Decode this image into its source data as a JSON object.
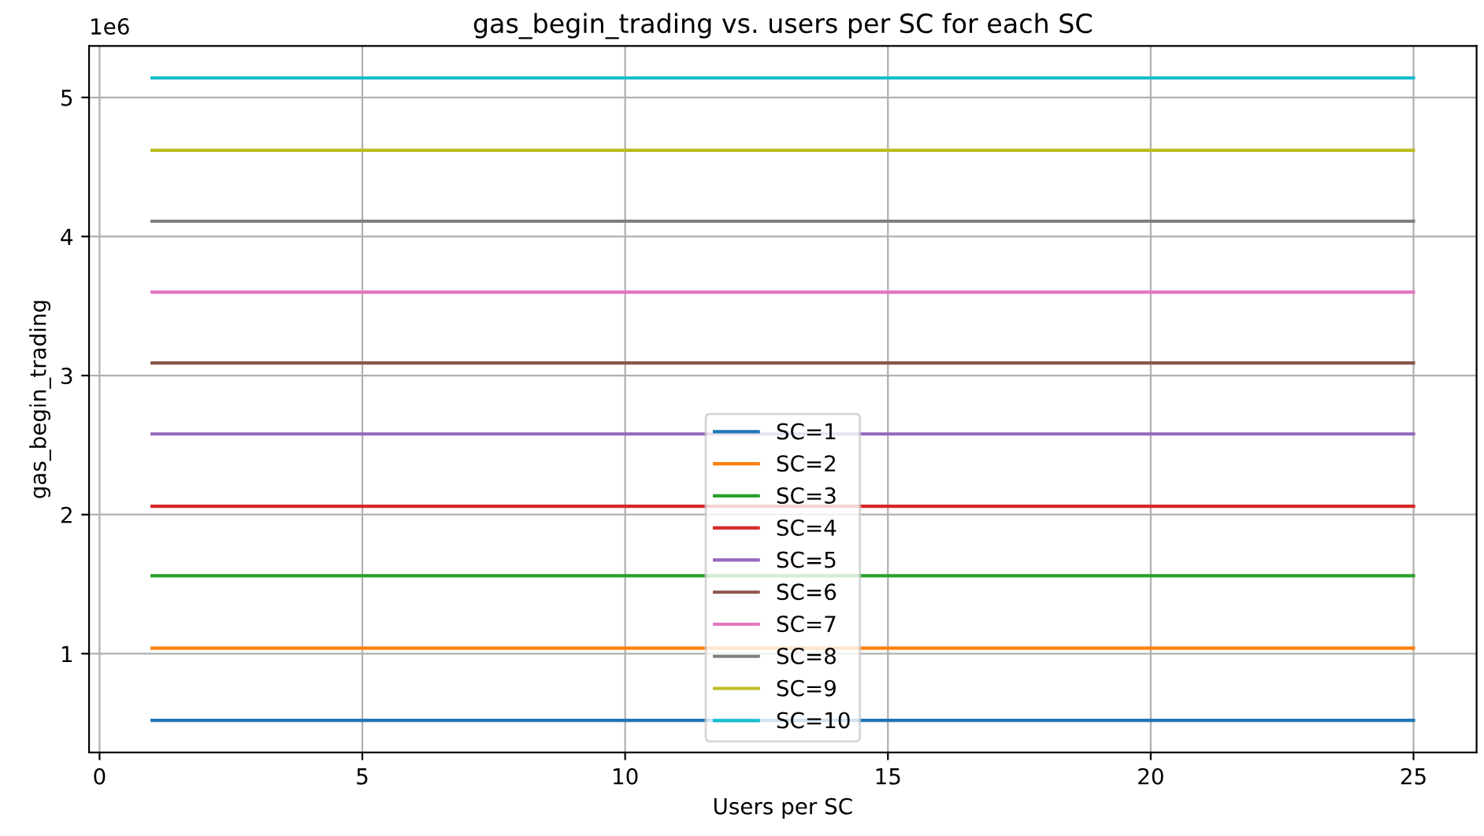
{
  "chart_data": {
    "type": "line",
    "title": "gas_begin_trading vs. users per SC for each SC",
    "xlabel": "Users per SC",
    "ylabel": "gas_begin_trading",
    "x": [
      1,
      25
    ],
    "series": [
      {
        "name": "SC=1",
        "color": "#1f77b4",
        "values": [
          0.52,
          0.52
        ]
      },
      {
        "name": "SC=2",
        "color": "#ff7f0e",
        "values": [
          1.04,
          1.04
        ]
      },
      {
        "name": "SC=3",
        "color": "#2ca02c",
        "values": [
          1.56,
          1.56
        ]
      },
      {
        "name": "SC=4",
        "color": "#d62728",
        "values": [
          2.06,
          2.06
        ]
      },
      {
        "name": "SC=5",
        "color": "#9467bd",
        "values": [
          2.58,
          2.58
        ]
      },
      {
        "name": "SC=6",
        "color": "#8c564b",
        "values": [
          3.09,
          3.09
        ]
      },
      {
        "name": "SC=7",
        "color": "#e377c2",
        "values": [
          3.6,
          3.6
        ]
      },
      {
        "name": "SC=8",
        "color": "#7f7f7f",
        "values": [
          4.11,
          4.11
        ]
      },
      {
        "name": "SC=9",
        "color": "#bcbd22",
        "values": [
          4.62,
          4.62
        ]
      },
      {
        "name": "SC=10",
        "color": "#17becf",
        "values": [
          5.14,
          5.14
        ]
      }
    ],
    "xlim": [
      -0.2,
      26.2
    ],
    "xticks": [
      0,
      5,
      10,
      15,
      20,
      25
    ],
    "ylim": [
      0.29,
      5.37
    ],
    "yticks": [
      1,
      2,
      3,
      4,
      5
    ],
    "annotations": [
      "1e6"
    ],
    "grid": true,
    "legend": "bottom",
    "marker": "none",
    "line_style": "solid"
  }
}
